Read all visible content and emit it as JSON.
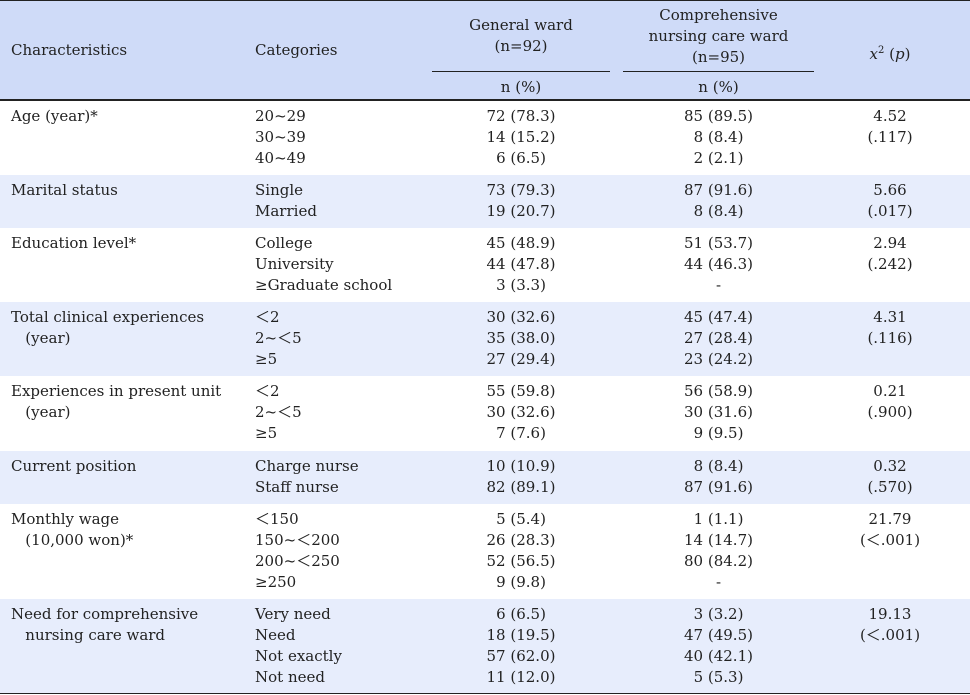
{
  "header": {
    "characteristics": "Characteristics",
    "categories": "Categories",
    "general_ward": {
      "line1": "General ward",
      "line2": "(n=92)"
    },
    "comprehensive_ward": {
      "line1": "Comprehensive",
      "line2": "nursing care ward",
      "line3": "(n=95)"
    },
    "stat_x": "x",
    "stat_sup": "2",
    "stat_p_open": " (",
    "stat_p": "p",
    "stat_p_close": ")",
    "n_pct_general": "n (%)",
    "n_pct_comprehensive": "n (%)"
  },
  "rows": [
    {
      "characteristic": "Age (year)*",
      "categories": [
        "20~29",
        "30~39",
        "40~49"
      ],
      "general": [
        "72 (78.3)",
        "14 (15.2)",
        "6 (6.5)"
      ],
      "comprehensive": [
        "85 (89.5)",
        "8 (8.4)",
        "2 (2.1)"
      ],
      "stat": [
        "4.52",
        "(.117)"
      ]
    },
    {
      "characteristic": "Marital status",
      "categories": [
        "Single",
        "Married"
      ],
      "general": [
        "73 (79.3)",
        "19 (20.7)"
      ],
      "comprehensive": [
        "87 (91.6)",
        "8 (8.4)"
      ],
      "stat": [
        "5.66",
        "(.017)"
      ]
    },
    {
      "characteristic": "Education level*",
      "categories": [
        "College",
        "University",
        "≥Graduate school"
      ],
      "general": [
        "45 (48.9)",
        "44 (47.8)",
        "3 (3.3)"
      ],
      "comprehensive": [
        "51 (53.7)",
        "44 (46.3)",
        "-"
      ],
      "stat": [
        "2.94",
        "(.242)"
      ]
    },
    {
      "characteristic": "Total clinical experiences\n   (year)",
      "categories": [
        "＜2",
        "2~＜5",
        "≥5"
      ],
      "general": [
        "30 (32.6)",
        "35 (38.0)",
        "27 (29.4)"
      ],
      "comprehensive": [
        "45 (47.4)",
        "27 (28.4)",
        "23 (24.2)"
      ],
      "stat": [
        "4.31",
        "(.116)"
      ]
    },
    {
      "characteristic": "Experiences in present unit\n   (year)",
      "categories": [
        "＜2",
        "2~＜5",
        "≥5"
      ],
      "general": [
        "55 (59.8)",
        "30 (32.6)",
        "7 (7.6)"
      ],
      "comprehensive": [
        "56 (58.9)",
        "30 (31.6)",
        "9 (9.5)"
      ],
      "stat": [
        "0.21",
        "(.900)"
      ]
    },
    {
      "characteristic": "Current position",
      "categories": [
        "Charge nurse",
        "Staff nurse"
      ],
      "general": [
        "10 (10.9)",
        "82 (89.1)"
      ],
      "comprehensive": [
        "8 (8.4)",
        "87 (91.6)"
      ],
      "stat": [
        "0.32",
        "(.570)"
      ]
    },
    {
      "characteristic": "Monthly wage\n   (10,000 won)*",
      "categories": [
        "＜150",
        "150~＜200",
        "200~＜250",
        "≥250"
      ],
      "general": [
        "5 (5.4)",
        "26 (28.3)",
        "52 (56.5)",
        "9 (9.8)"
      ],
      "comprehensive": [
        "1 (1.1)",
        "14 (14.7)",
        "80 (84.2)",
        "-"
      ],
      "stat": [
        "21.79",
        "(＜.001)"
      ]
    },
    {
      "characteristic": "Need for comprehensive\n   nursing care ward",
      "categories": [
        "Very need",
        "Need",
        "Not exactly",
        "Not need"
      ],
      "general": [
        "6 (6.5)",
        "18 (19.5)",
        "57 (62.0)",
        "11 (12.0)"
      ],
      "comprehensive": [
        "3 (3.2)",
        "47 (49.5)",
        "40 (42.1)",
        "5 (5.3)"
      ],
      "stat": [
        "19.13",
        "(＜.001)"
      ]
    }
  ]
}
